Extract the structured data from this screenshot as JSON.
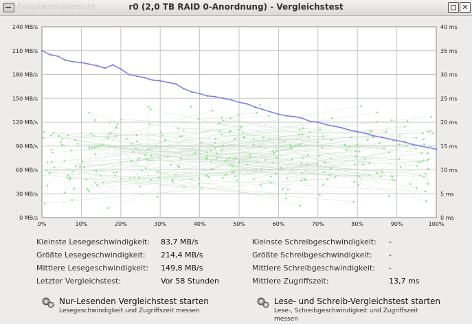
{
  "window": {
    "title": "r0 (2,0 TB RAID 0-Anordnung) - Vergleichstest",
    "background_title": "Festplattenübersicht"
  },
  "chart_data": {
    "type": "line",
    "x_ticks": [
      "0%",
      "10%",
      "20%",
      "30%",
      "40%",
      "50%",
      "60%",
      "70%",
      "80%",
      "90%",
      "100%"
    ],
    "y_left_ticks": [
      "0 MB/s",
      "30 MB/s",
      "60 MB/s",
      "90 MB/s",
      "120 MB/s",
      "150 MB/s",
      "180 MB/s",
      "210 MB/s",
      "240 MB/s"
    ],
    "y_right_ticks": [
      "0 ms",
      "5 ms",
      "10 ms",
      "15 ms",
      "20 ms",
      "25 ms",
      "30 ms",
      "35 ms",
      "40 ms"
    ],
    "ylim_left": [
      0,
      240
    ],
    "ylim_right": [
      0,
      40
    ],
    "xlim": [
      0,
      100
    ],
    "grid": true,
    "series": [
      {
        "color": "#7b7bea",
        "x": [
          0,
          2,
          4,
          6,
          8,
          10,
          12,
          14,
          16,
          18,
          20,
          22,
          24,
          26,
          28,
          30,
          32,
          34,
          36,
          38,
          40,
          42,
          44,
          46,
          48,
          50,
          52,
          54,
          56,
          58,
          60,
          62,
          64,
          66,
          68,
          70,
          72,
          74,
          76,
          78,
          80,
          82,
          84,
          86,
          88,
          90,
          92,
          94,
          96,
          98,
          100
        ],
        "values": [
          210,
          205,
          203,
          198,
          196,
          195,
          193,
          191,
          188,
          192,
          187,
          180,
          178,
          176,
          173,
          172,
          170,
          168,
          162,
          158,
          156,
          153,
          152,
          150,
          148,
          145,
          143,
          139,
          136,
          133,
          130,
          128,
          127,
          125,
          121,
          120,
          117,
          115,
          113,
          110,
          108,
          106,
          103,
          101,
          99,
          97,
          95,
          92,
          90,
          88,
          86
        ]
      }
    ],
    "access_time_ms": {
      "color": "#7ee87e",
      "mean": 13.7
    }
  },
  "stats": {
    "read_min_label": "Kleinste Lesegeschwindigkeit:",
    "read_min_value": "83,7 MB/s",
    "read_max_label": "Größte Lesegeschwindigkeit:",
    "read_max_value": "214,4 MB/s",
    "read_avg_label": "Mittlere Lesegeschwindigkeit:",
    "read_avg_value": "149,8 MB/s",
    "last_test_label": "Letzter Vergleichstest:",
    "last_test_value": "Vor 58 Stunden",
    "write_min_label": "Kleinste Schreibgeschwindigkeit:",
    "write_min_value": "-",
    "write_max_label": "Größte Schreibgeschwindigkeit:",
    "write_max_value": "-",
    "write_avg_label": "Mittlere Schreibgeschwindigkeit:",
    "write_avg_value": "-",
    "access_avg_label": "Mittlere Zugriffszeit:",
    "access_avg_value": "13,7 ms"
  },
  "actions": {
    "read_only_title": "Nur-Lesenden Vergleichstest starten",
    "read_only_sub": "Lesegeschwindigkeit und Zugriffszeit messen",
    "read_write_title": "Lese- und Schreib-Vergleichstest starten",
    "read_write_sub": "Lese-, Schreibgeschwindigkeit und Zugriffszeit messen"
  }
}
